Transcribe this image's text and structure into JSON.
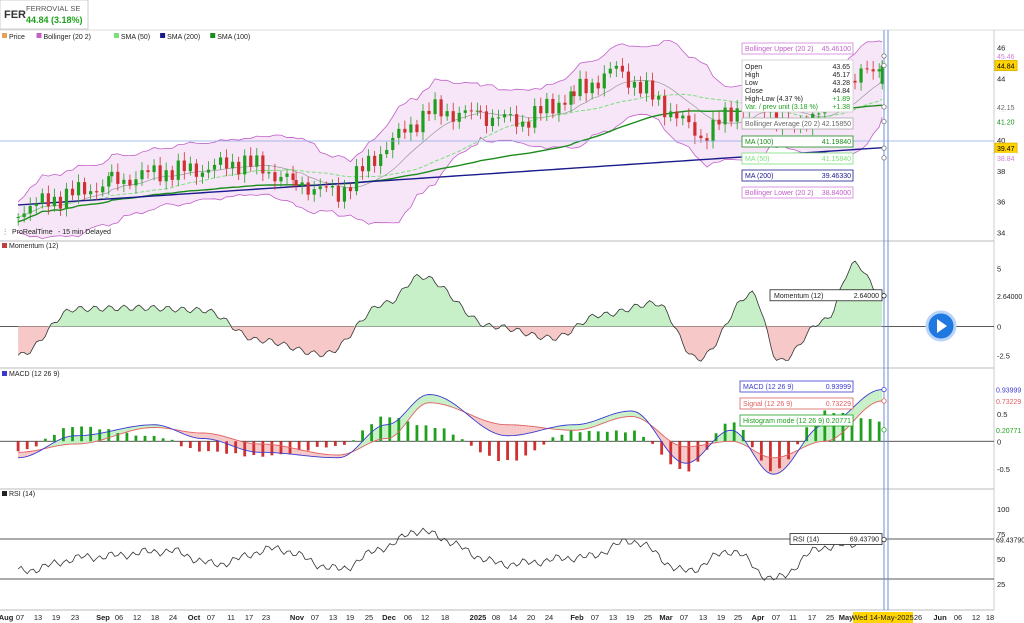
{
  "header": {
    "ticker": "FER",
    "name": "FERROVIAL SE",
    "price_change": "44.84 (3.18%)"
  },
  "legend": [
    {
      "label": "Price",
      "color": "#e8a05a"
    },
    {
      "label": "Bollinger (20 2)",
      "color": "#c060c8"
    },
    {
      "label": "SMA (50)",
      "color": "#7be07b"
    },
    {
      "label": "SMA (200)",
      "color": "#1a1a8c"
    },
    {
      "label": "SMA (100)",
      "color": "#1b8c1b"
    }
  ],
  "source_label": "ProRealTime",
  "delay_label": "- 15 min Delayed",
  "price_axis_ticks": [
    "46",
    "44",
    "42",
    "40",
    "38",
    "36",
    "34"
  ],
  "price_axis_badges": [
    {
      "text": "45.46",
      "color": "#d080d8",
      "bg": "#ffffff"
    },
    {
      "text": "44.84",
      "color": "#000000",
      "bg": "#ffd400"
    },
    {
      "text": "42.15",
      "color": "#666666",
      "bg": "#ffffff"
    },
    {
      "text": "41.20",
      "color": "#1b8c1b",
      "bg": "#ffffff"
    },
    {
      "text": "39.47",
      "color": "#000000",
      "bg": "#ffd400"
    },
    {
      "text": "38.84",
      "color": "#d080d8",
      "bg": "#ffffff"
    }
  ],
  "info_boxes": {
    "bollinger_upper": {
      "label": "Bollinger Upper (20 2)",
      "value": "45.46100"
    },
    "ohlc": {
      "rows": [
        {
          "label": "Open",
          "value": "43.65"
        },
        {
          "label": "High",
          "value": "45.17"
        },
        {
          "label": "Low",
          "value": "43.28"
        },
        {
          "label": "Close",
          "value": "44.84"
        },
        {
          "label": "High-Low (4.37 %)",
          "value": "+1.89"
        },
        {
          "label": "Var. / prev unit (3.18 %)",
          "value": "+1.38"
        }
      ]
    },
    "bollinger_average": {
      "label": "Bollinger Average (20 2)",
      "value": "42.15850"
    },
    "ma100": {
      "label": "MA (100)",
      "value": "41.19840"
    },
    "ma50": {
      "label": "MA (50)",
      "value": "41.15840"
    },
    "ma200": {
      "label": "MA (200)",
      "value": "39.46330"
    },
    "bollinger_lower": {
      "label": "Bollinger Lower (20 2)",
      "value": "38.84000"
    }
  },
  "momentum": {
    "title": "Momentum (12)",
    "box_label": "Momentum (12)",
    "box_value": "2.64000",
    "axis_ticks": [
      "5",
      "0",
      "-2.5"
    ],
    "badge": "2.64000"
  },
  "macd": {
    "title": "MACD (12 26 9)",
    "boxes": [
      {
        "label": "MACD (12 26 9)",
        "value": "0.93999",
        "color": "#3a3ad0"
      },
      {
        "label": "Signal (12 26 9)",
        "value": "0.73229",
        "color": "#e06060"
      },
      {
        "label": "Histogram mode (12 26 9)",
        "value": "0.20771",
        "color": "#1ea01e"
      }
    ],
    "axis_ticks": [
      "0.5",
      "0",
      "-0.5"
    ],
    "badges": [
      {
        "text": "0.93999",
        "color": "#3a3ad0"
      },
      {
        "text": "0.73229",
        "color": "#e06060"
      },
      {
        "text": "0.20771",
        "color": "#1ea01e"
      }
    ]
  },
  "rsi": {
    "title": "RSI (14)",
    "box_label": "RSI (14)",
    "box_value": "69.43790",
    "axis_ticks": [
      "100",
      "75",
      "50",
      "25"
    ],
    "badge": "69.43790"
  },
  "x_axis": {
    "labels": [
      "Aug",
      "07",
      "13",
      "19",
      "23",
      "Sep",
      "06",
      "12",
      "18",
      "24",
      "Oct",
      "07",
      "11",
      "17",
      "23",
      "Nov",
      "07",
      "13",
      "19",
      "25",
      "Dec",
      "06",
      "12",
      "18",
      "2025",
      "08",
      "14",
      "20",
      "24",
      "Feb",
      "07",
      "13",
      "19",
      "25",
      "Mar",
      "07",
      "13",
      "19",
      "25",
      "Apr",
      "07",
      "11",
      "17",
      "25",
      "May",
      "Wed 14-May-2025",
      "26",
      "Jun",
      "06",
      "12",
      "18"
    ],
    "highlight": "Wed 14-May-2025"
  },
  "chart_data": [
    {
      "type": "candlestick",
      "title": "FERROVIAL SE",
      "x_range": [
        "2024-07-26",
        "2025-06-20"
      ],
      "ylim": [
        33.5,
        46.5
      ],
      "series": [
        {
          "name": "Price",
          "values": [
            {
              "date": "2024-08-01",
              "close": 35.4
            },
            {
              "date": "2024-08-15",
              "close": 36.3
            },
            {
              "date": "2024-09-01",
              "close": 37.2
            },
            {
              "date": "2024-09-15",
              "close": 37.9
            },
            {
              "date": "2024-10-01",
              "close": 38.1
            },
            {
              "date": "2024-10-15",
              "close": 38.6
            },
            {
              "date": "2024-11-01",
              "close": 37.2
            },
            {
              "date": "2024-11-15",
              "close": 36.5
            },
            {
              "date": "2024-12-01",
              "close": 39.6
            },
            {
              "date": "2024-12-15",
              "close": 41.9
            },
            {
              "date": "2025-01-01",
              "close": 41.6
            },
            {
              "date": "2025-01-15",
              "close": 41.2
            },
            {
              "date": "2025-02-01",
              "close": 43.0
            },
            {
              "date": "2025-02-15",
              "close": 44.6
            },
            {
              "date": "2025-03-01",
              "close": 42.5
            },
            {
              "date": "2025-03-15",
              "close": 40.2
            },
            {
              "date": "2025-04-01",
              "close": 42.8
            },
            {
              "date": "2025-04-15",
              "close": 40.6
            },
            {
              "date": "2025-05-01",
              "close": 43.6
            },
            {
              "date": "2025-05-14",
              "close": 44.84
            }
          ]
        },
        {
          "name": "Bollinger Upper (20 2)",
          "last": 45.461
        },
        {
          "name": "Bollinger Average (20 2)",
          "last": 42.1585
        },
        {
          "name": "Bollinger Lower (20 2)",
          "last": 38.84
        },
        {
          "name": "MA (50)",
          "last": 41.1584
        },
        {
          "name": "MA (100)",
          "last": 41.1984
        },
        {
          "name": "MA (200)",
          "last": 39.4633
        }
      ],
      "last_candle": {
        "open": 43.65,
        "high": 45.17,
        "low": 43.28,
        "close": 44.84
      }
    },
    {
      "type": "area",
      "title": "Momentum (12)",
      "ylim": [
        -3.5,
        6.5
      ],
      "x": [
        "2024-08-01",
        "2024-08-20",
        "2024-09-10",
        "2024-10-01",
        "2024-10-20",
        "2024-11-10",
        "2024-12-01",
        "2024-12-12",
        "2025-01-05",
        "2025-01-25",
        "2025-02-10",
        "2025-02-28",
        "2025-03-14",
        "2025-04-01",
        "2025-04-10",
        "2025-04-25",
        "2025-05-05",
        "2025-05-14"
      ],
      "values": [
        -2.5,
        1.5,
        1.6,
        1.4,
        -1.2,
        -2.4,
        2.0,
        4.3,
        0.0,
        -1.0,
        1.0,
        2.0,
        -2.8,
        2.8,
        -3.0,
        0.5,
        5.4,
        2.64
      ],
      "last": 2.64
    },
    {
      "type": "line",
      "title": "MACD (12 26 9)",
      "ylim": [
        -0.85,
        1.15
      ],
      "x": [
        "2024-08-01",
        "2024-08-20",
        "2024-09-15",
        "2024-10-01",
        "2024-10-20",
        "2024-11-15",
        "2024-12-01",
        "2024-12-15",
        "2025-01-10",
        "2025-02-01",
        "2025-02-20",
        "2025-03-10",
        "2025-03-25",
        "2025-04-08",
        "2025-04-25",
        "2025-05-14"
      ],
      "series": [
        {
          "name": "MACD (12 26 9)",
          "values": [
            -0.3,
            0.1,
            0.3,
            0.05,
            -0.2,
            -0.3,
            0.3,
            0.85,
            0.1,
            0.3,
            0.55,
            -0.4,
            0.2,
            -0.6,
            0.3,
            0.93999
          ]
        },
        {
          "name": "Signal (12 26 9)",
          "values": [
            -0.2,
            -0.05,
            0.25,
            0.15,
            -0.05,
            -0.25,
            0.05,
            0.7,
            0.3,
            0.2,
            0.45,
            -0.1,
            0.0,
            -0.3,
            0.0,
            0.73229
          ]
        },
        {
          "name": "Histogram mode (12 26 9)",
          "values": [
            -0.1,
            0.15,
            0.05,
            -0.1,
            -0.15,
            -0.05,
            0.25,
            0.15,
            -0.2,
            0.1,
            0.1,
            -0.3,
            0.2,
            -0.3,
            0.3,
            0.20771
          ]
        }
      ]
    },
    {
      "type": "line",
      "title": "RSI (14)",
      "ylim": [
        0,
        110
      ],
      "x": [
        "2024-08-01",
        "2024-08-25",
        "2024-09-20",
        "2024-10-05",
        "2024-10-25",
        "2024-11-15",
        "2024-12-01",
        "2024-12-10",
        "2025-01-10",
        "2025-02-05",
        "2025-02-20",
        "2025-03-10",
        "2025-03-25",
        "2025-04-08",
        "2025-04-25",
        "2025-05-14"
      ],
      "values": [
        38,
        52,
        58,
        45,
        60,
        40,
        62,
        78,
        45,
        52,
        68,
        38,
        58,
        30,
        62,
        69.4379
      ],
      "reference_lines": [
        70,
        30
      ],
      "last": 69.4379
    }
  ]
}
